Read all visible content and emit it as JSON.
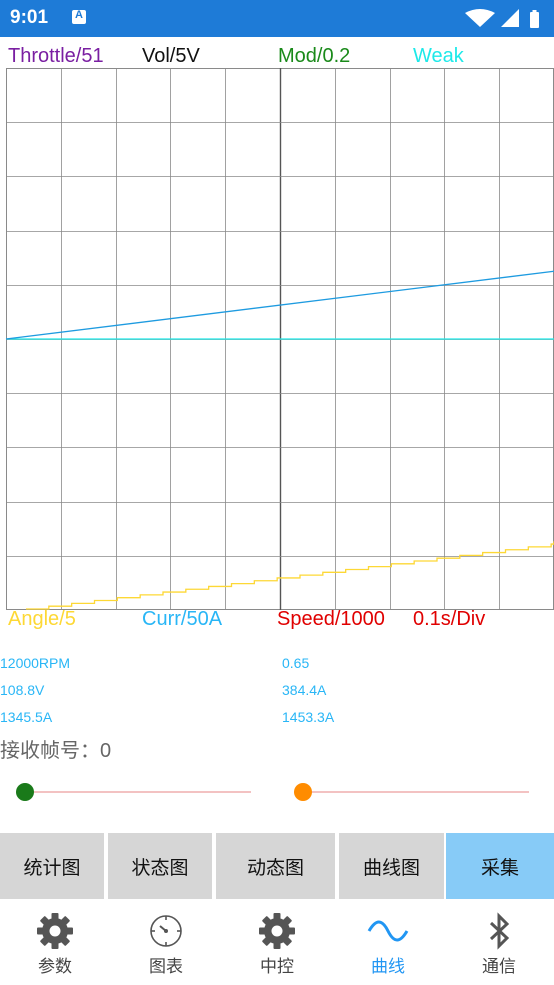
{
  "status_bar": {
    "time": "9:01",
    "notification_icon": "A",
    "icons": [
      "wifi-icon",
      "signal-icon",
      "battery-icon"
    ]
  },
  "plot": {
    "top_labels": [
      {
        "text": "Throttle/51",
        "color": "#7a1fa2"
      },
      {
        "text": "Vol/5V",
        "color": "#111111"
      },
      {
        "text": "Mod/0.2",
        "color": "#1a8a1a"
      },
      {
        "text": "Weak",
        "color": "#1de9e9"
      }
    ],
    "bottom_labels": [
      {
        "text": "Angle/5",
        "color": "#fdd835"
      },
      {
        "text": "Curr/50A",
        "color": "#29b6f6"
      },
      {
        "text": "Speed/1000",
        "color": "#e00000"
      },
      {
        "text": "0.1s/Div",
        "color": "#e00000"
      }
    ],
    "grid": {
      "columns": 10,
      "rows": 10
    },
    "traces": {
      "cyan_flat_level": 0.5,
      "blue_line": {
        "start": 0.5,
        "end": 0.625
      },
      "yellow_step": {
        "start": 0.0,
        "end": 0.125,
        "steps": 24
      }
    }
  },
  "readouts": {
    "left": [
      "12000RPM",
      "108.8V",
      "1345.5A"
    ],
    "right": [
      "0.65",
      "384.4A",
      "1453.3A"
    ]
  },
  "frame_count": "接收帧号：0",
  "sliders": [
    {
      "value": 0,
      "thumb_color": "#1a7a1a"
    },
    {
      "value": 0,
      "thumb_color": "#ff8c00"
    }
  ],
  "tabs": [
    {
      "label": "统计图",
      "active": false
    },
    {
      "label": "状态图",
      "active": false
    },
    {
      "label": "动态图",
      "active": false
    },
    {
      "label": "曲线图",
      "active": false
    },
    {
      "label": "采集",
      "active": true
    }
  ],
  "bottom_nav": [
    {
      "label": "参数",
      "icon": "gear-icon",
      "active": false
    },
    {
      "label": "图表",
      "icon": "dial-icon",
      "active": false
    },
    {
      "label": "中控",
      "icon": "gear-icon",
      "active": false
    },
    {
      "label": "曲线",
      "icon": "wave-icon",
      "active": true
    },
    {
      "label": "通信",
      "icon": "bluetooth-icon",
      "active": false
    }
  ],
  "colors": {
    "status_bar": "#1e7bd7",
    "grid_line": "#8a8a8a",
    "cyan_trace": "#1de9e9",
    "blue_trace": "#1e9be0",
    "yellow_trace": "#fdd835",
    "tab_active": "#87cbf7",
    "tab_inactive": "#d6d6d6",
    "nav_active": "#2196f3",
    "nav_inactive": "#555555"
  }
}
